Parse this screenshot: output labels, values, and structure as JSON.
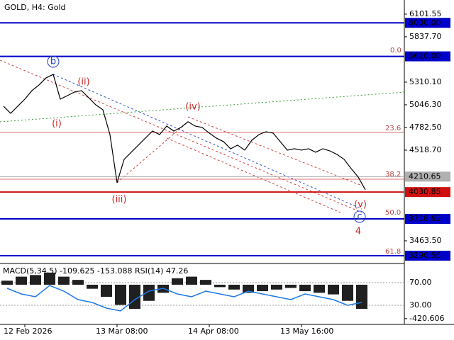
{
  "chart_data": [
    {
      "type": "line",
      "title": "GOLD, H4:  Gold",
      "color": "#000000",
      "categories": [
        null,
        null,
        null,
        "12 Feb 2026",
        null,
        null,
        null,
        null,
        null,
        null,
        null,
        null,
        null,
        null,
        null,
        null,
        "13 Mar 08:00",
        null,
        null,
        null,
        null,
        null,
        null,
        null,
        null,
        null,
        null,
        null,
        null,
        "14 Apr 08:00",
        null,
        null,
        null,
        null,
        null,
        null,
        null,
        null,
        null,
        null,
        null,
        null,
        "13 May 16:00",
        null,
        null,
        null,
        null,
        null,
        null,
        null,
        null,
        null
      ],
      "values": [
        5030,
        4947,
        5030,
        5112,
        5211,
        5277,
        5360,
        5401,
        5112,
        5153,
        5195,
        5211,
        5129,
        5046,
        4989,
        4700,
        4140,
        4412,
        4494,
        4577,
        4659,
        4741,
        4700,
        4799,
        4741,
        4783,
        4849,
        4799,
        4783,
        4717,
        4659,
        4618,
        4535,
        4577,
        4519,
        4634,
        4700,
        4733,
        4717,
        4618,
        4519,
        4535,
        4519,
        4535,
        4494,
        4535,
        4510,
        4469,
        4412,
        4304,
        4205,
        4057
      ],
      "ylim": [
        3216,
        6200
      ],
      "yticks": [
        {
          "value": 6101.55,
          "label": "6101.55"
        },
        {
          "value": 5837.7,
          "label": "5837.70"
        },
        {
          "value": 5310.1,
          "label": "5310.10"
        },
        {
          "value": 5046.3,
          "label": "5046.30"
        },
        {
          "value": 4782.5,
          "label": "4782.50"
        },
        {
          "value": 4518.7,
          "label": "4518.70"
        },
        {
          "value": 3463.5,
          "label": "3463.50"
        }
      ],
      "levels": [
        {
          "value": 6000,
          "label": "6000.00",
          "color": "#0000c8"
        },
        {
          "value": 5610,
          "label": "5610.00",
          "color": "#0000c8"
        },
        {
          "value": 4210.65,
          "label": "4210.65",
          "color": "#b0b0b0"
        },
        {
          "value": 4030.85,
          "label": "4030.85",
          "color": "#d01010"
        },
        {
          "value": 3718.62,
          "label": "3718.62",
          "color": "#0000c8"
        },
        {
          "value": 3290.55,
          "label": "3290.55",
          "color": "#0000c8"
        }
      ],
      "fib_labels": [
        "0.0",
        "23.6",
        "38.2",
        "50.0",
        "61.8"
      ],
      "annotations": [
        "b",
        "(ii)",
        "(i)",
        "(iii)",
        "(iv)",
        "(v)",
        "c",
        "4"
      ]
    },
    {
      "type": "bar",
      "title": "MACD(5,34,5) -109.625 -153.088 RSI(14) 47.26",
      "values": [
        50,
        100,
        120,
        150,
        100,
        60,
        -50,
        -150,
        -250,
        -300,
        -200,
        -100,
        80,
        100,
        60,
        -30,
        -60,
        -100,
        -80,
        -60,
        -40,
        -80,
        -100,
        -120,
        -200,
        -300
      ],
      "ylim": [
        -554,
        237
      ],
      "yticks": [
        -420.606
      ],
      "color": "#202020",
      "series": [
        {
          "name": "RSI(14)",
          "color": "#1e78e6",
          "axis": "y2",
          "values": [
            60,
            50,
            45,
            65,
            55,
            40,
            35,
            25,
            20,
            40,
            55,
            60,
            50,
            45,
            55,
            50,
            45,
            55,
            50,
            45,
            40,
            50,
            45,
            40,
            30,
            35
          ]
        }
      ],
      "y2lim": [
        -12.5,
        100
      ],
      "y2ticks": [
        {
          "value": 70,
          "label": "70.00"
        },
        {
          "value": 30,
          "label": "30.00"
        }
      ]
    }
  ]
}
